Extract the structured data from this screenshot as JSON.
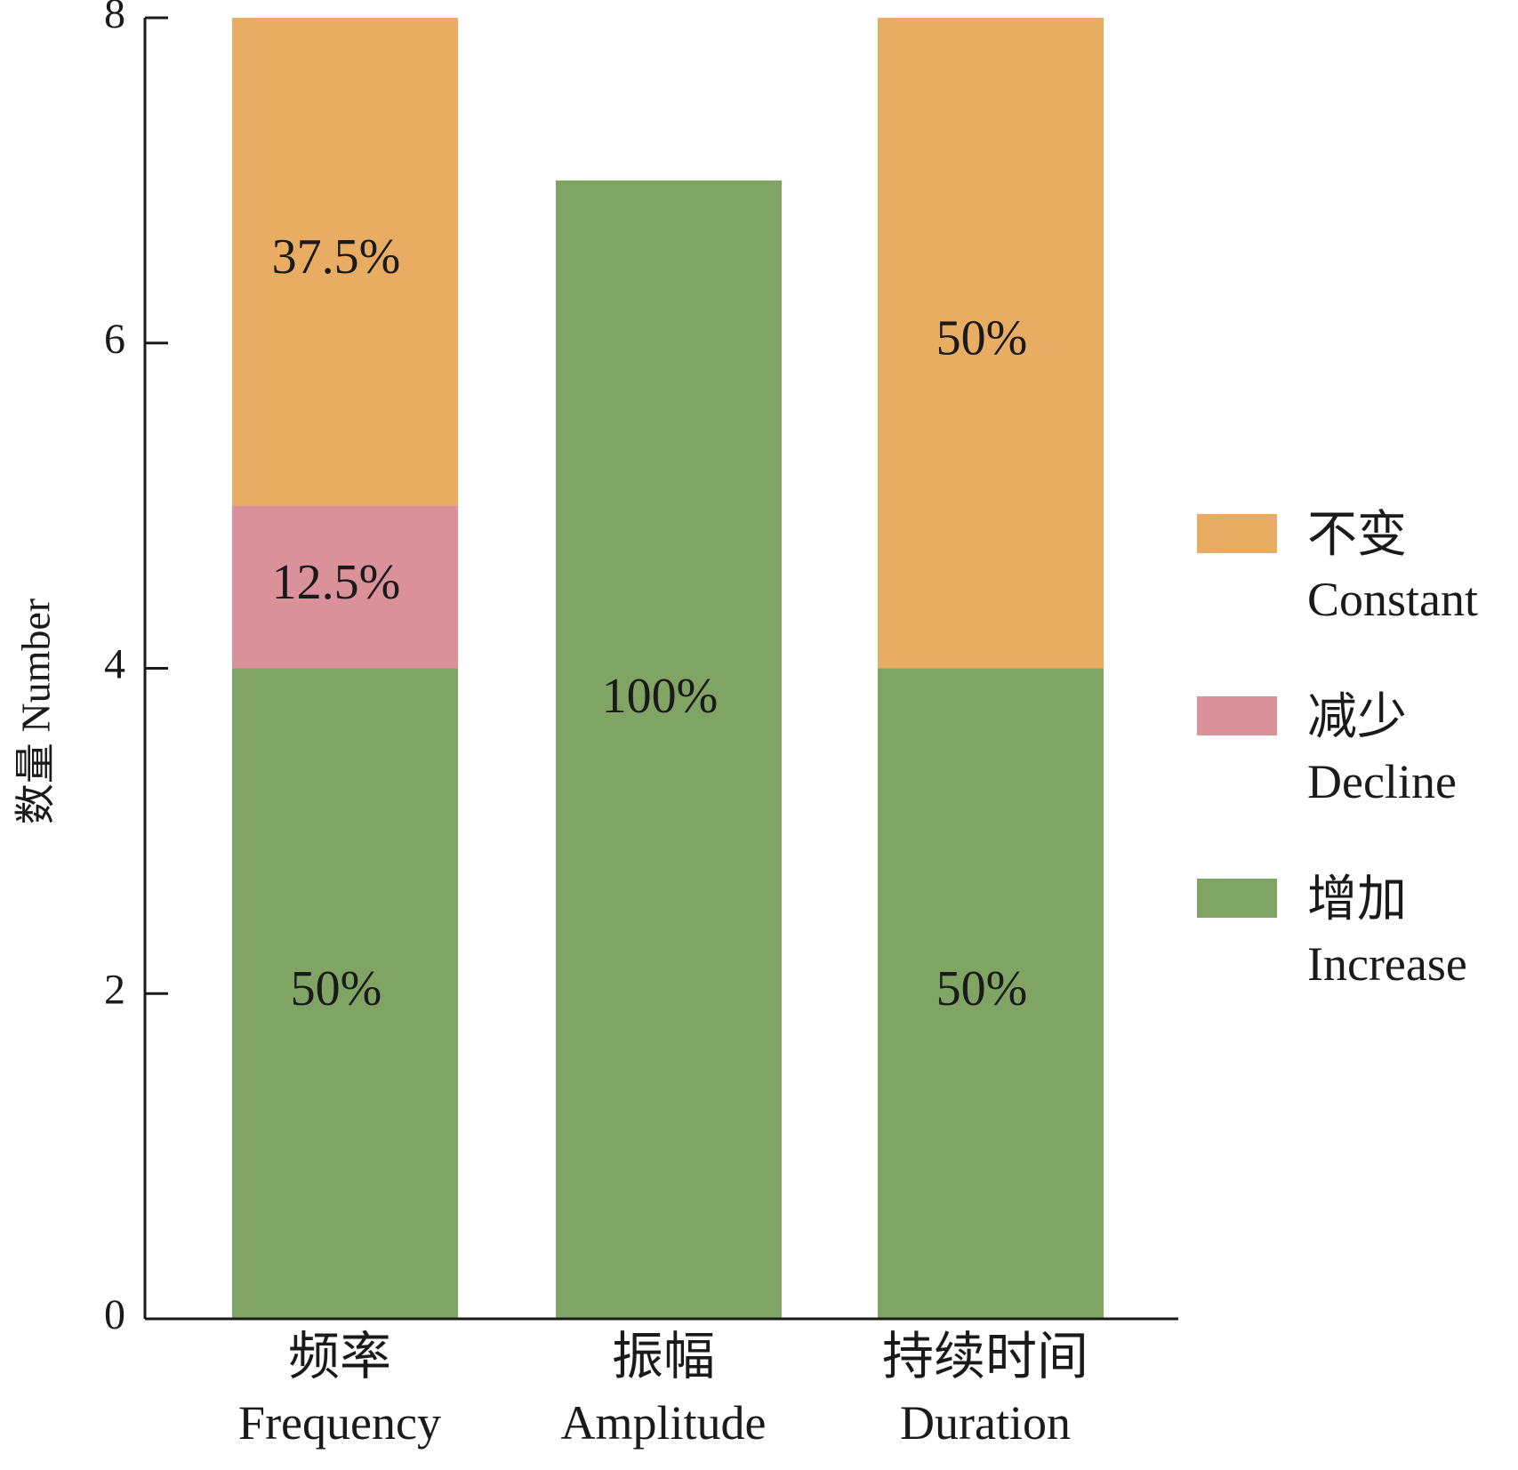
{
  "chart_data": {
    "type": "bar",
    "stacked": true,
    "title": "",
    "ylabel": "数量 Number",
    "xlabel": "",
    "ylim": [
      0,
      8
    ],
    "yticks": [
      0,
      2,
      4,
      6,
      8
    ],
    "ytick_labels": [
      "0",
      "2",
      "4",
      "6",
      "8"
    ],
    "grid": false,
    "legend_position": "right",
    "categories": [
      {
        "zh": "频率",
        "en": "Frequency"
      },
      {
        "zh": "振幅",
        "en": "Amplitude"
      },
      {
        "zh": "持续时间",
        "en": "Duration"
      }
    ],
    "series": [
      {
        "key": "increase",
        "zh": "增加",
        "en": "Increase",
        "color": "#80a463",
        "values": [
          4,
          7,
          4
        ],
        "labels": [
          "50%",
          "100%",
          "50%"
        ]
      },
      {
        "key": "decline",
        "zh": "减少",
        "en": "Decline",
        "color": "#db9199",
        "values": [
          1,
          0,
          0
        ],
        "labels": [
          "12.5%",
          "",
          ""
        ]
      },
      {
        "key": "constant",
        "zh": "不变",
        "en": "Constant",
        "color": "#e8ad62",
        "values": [
          3,
          0,
          4
        ],
        "labels": [
          "37.5%",
          "",
          "50%"
        ]
      }
    ]
  }
}
